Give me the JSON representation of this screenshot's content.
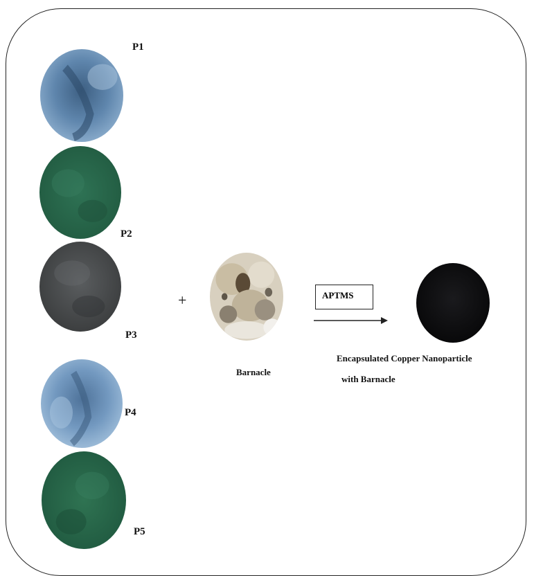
{
  "precursors": [
    {
      "id": "P1",
      "label": "P1",
      "color": "#6b8db0"
    },
    {
      "id": "P2",
      "label": "P2",
      "color": "#2b6a4d"
    },
    {
      "id": "P3",
      "label": "P3",
      "color": "#4a4d4e"
    },
    {
      "id": "P4",
      "label": "P4",
      "color": "#7a9cc2"
    },
    {
      "id": "P5",
      "label": "P5",
      "color": "#2a6a4c"
    }
  ],
  "operator": "+",
  "barnacle": {
    "label": "Barnacle"
  },
  "reagent": {
    "label": "APTMS"
  },
  "product": {
    "label_line1": "Encapsulated Copper Nanoparticle",
    "label_line2": "with Barnacle",
    "color": "#0c0c0e"
  }
}
